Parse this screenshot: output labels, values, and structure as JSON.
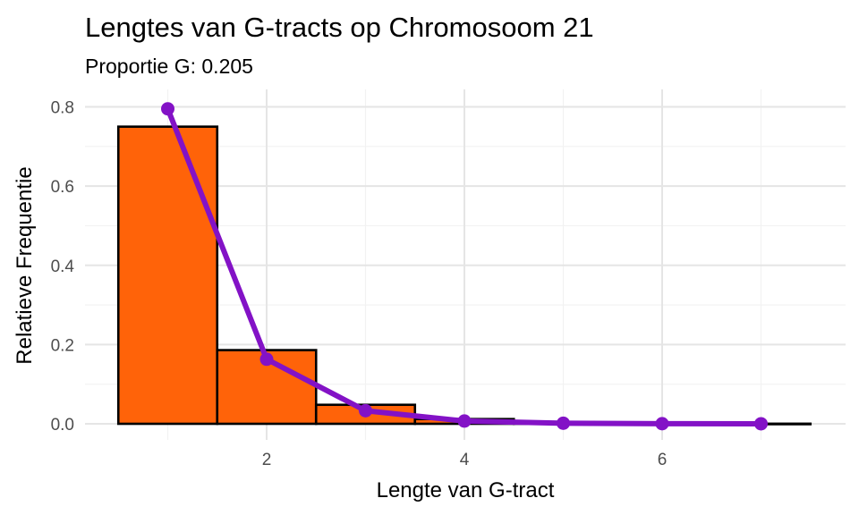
{
  "chart_data": {
    "type": "bar",
    "title": "Lengtes van G-tracts op Chromosoom 21",
    "subtitle": "Proportie G: 0.205",
    "xlabel": "Lengte van G-tract",
    "ylabel": "Relatieve Frequentie",
    "xlim": [
      0.5,
      7.5
    ],
    "ylim": [
      0,
      0.8
    ],
    "grid": true,
    "legend": "none",
    "x_ticks": [
      2,
      4,
      6
    ],
    "x_tick_labels": [
      "2",
      "4",
      "6"
    ],
    "y_ticks": [
      0,
      0.2,
      0.4,
      0.6,
      0.8
    ],
    "y_tick_labels": [
      "0.0",
      "0.2",
      "0.4",
      "0.6",
      "0.8"
    ],
    "bars": {
      "x": [
        1,
        2,
        3,
        4,
        5,
        6,
        7
      ],
      "values": [
        0.75,
        0.186,
        0.048,
        0.012,
        0.002,
        0.0008,
        0.0003
      ],
      "fill": "#ff6309",
      "stroke": "#000000"
    },
    "line": {
      "x": [
        1,
        2,
        3,
        4,
        5,
        6,
        7
      ],
      "values": [
        0.795,
        0.163,
        0.033,
        0.007,
        0.0015,
        0.0003,
        0.0001
      ],
      "color": "#8312c6"
    }
  }
}
